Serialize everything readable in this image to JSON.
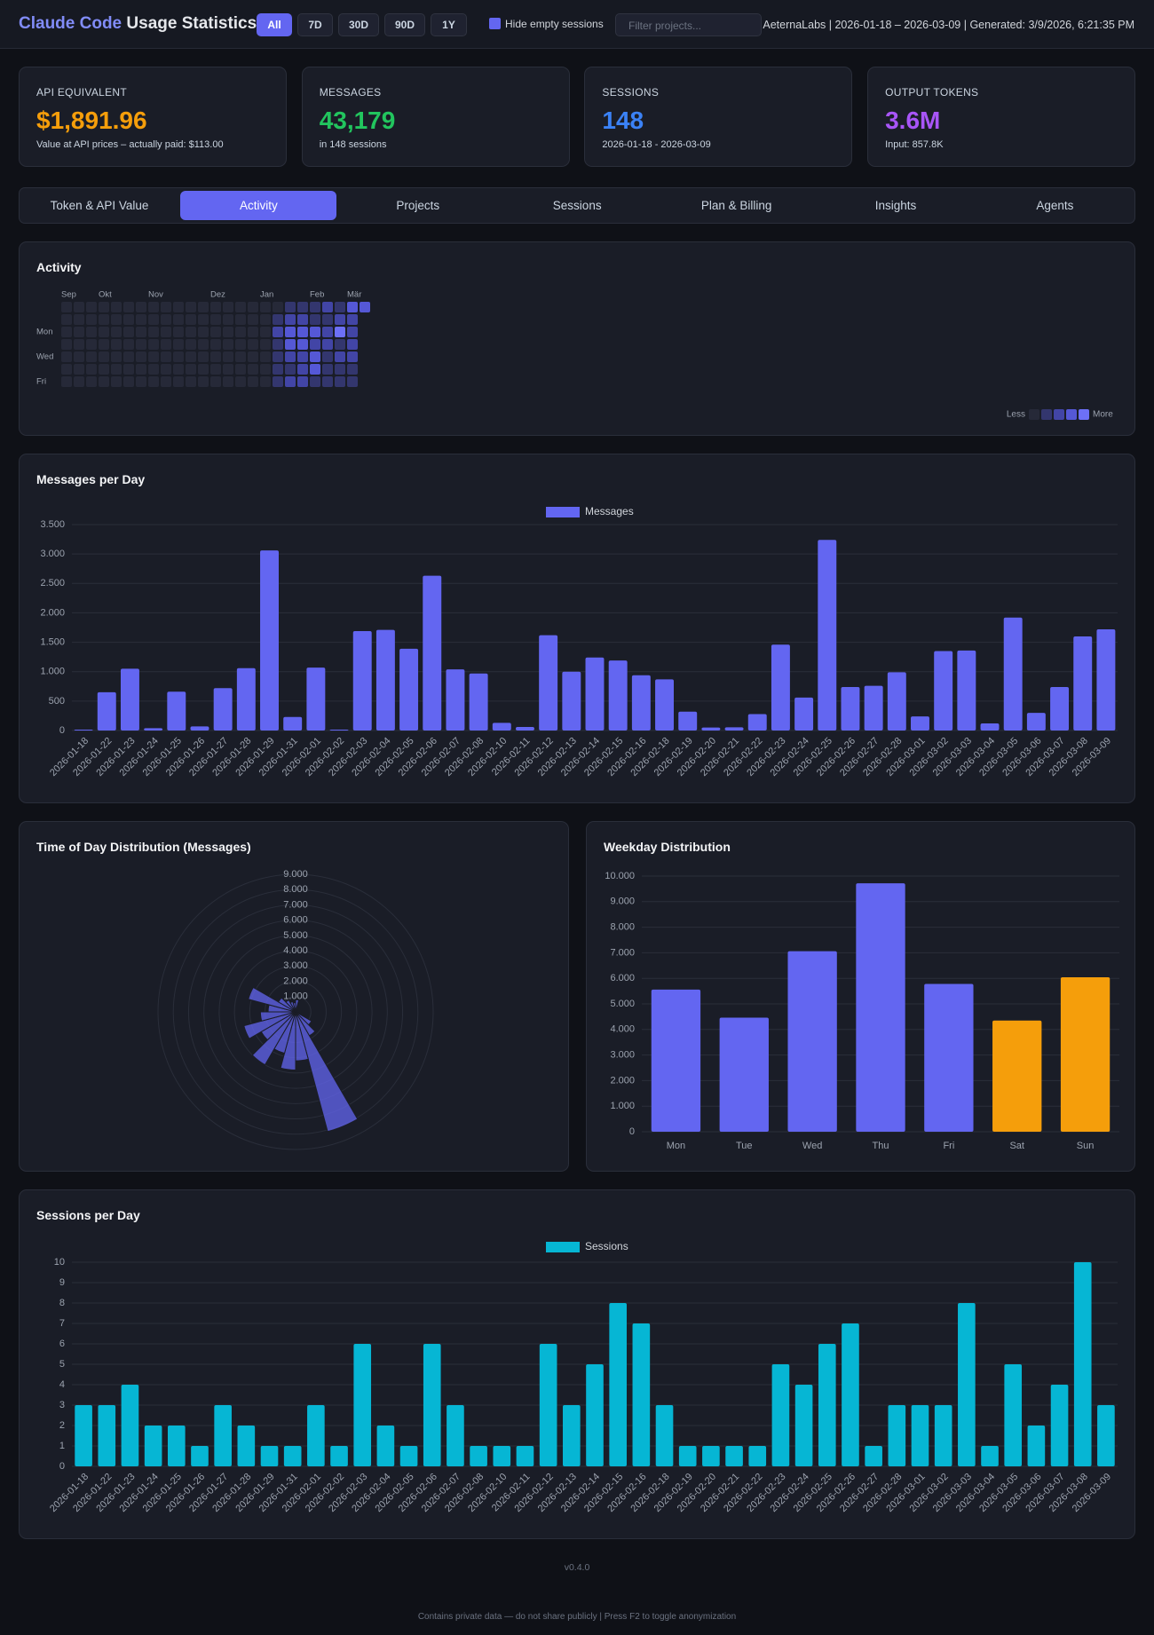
{
  "header": {
    "title_accent": "Claude Code",
    "title": "Usage Statistics",
    "ranges": [
      "All",
      "7D",
      "30D",
      "90D",
      "1Y"
    ],
    "checkbox_label": "Hide empty sessions",
    "filter_placeholder": "Filter projects...",
    "meta": "AeternaLabs | 2026-01-18 – 2026-03-09 | Generated: 3/9/2026, 6:21:35 PM"
  },
  "stats": [
    {
      "label": "API EQUIVALENT",
      "value": "$1,891.96",
      "sub": "Value at API prices – actually paid: $113.00",
      "color": "#f59e0b"
    },
    {
      "label": "MESSAGES",
      "value": "43,179",
      "sub": "in 148 sessions",
      "color": "#22c55e"
    },
    {
      "label": "SESSIONS",
      "value": "148",
      "sub": "2026-01-18 - 2026-03-09",
      "color": "#3b82f6"
    },
    {
      "label": "OUTPUT TOKENS",
      "value": "3.6M",
      "sub": "Input: 857.8K",
      "color": "#a855f7"
    }
  ],
  "tabs": [
    "Token & API Value",
    "Activity",
    "Projects",
    "Sessions",
    "Plan & Billing",
    "Insights",
    "Agents"
  ],
  "activity": {
    "title": "Activity",
    "months": [
      "Sep",
      "Okt",
      "Nov",
      "Dez",
      "Jan",
      "Feb",
      "Mär"
    ],
    "days": [
      "Mon",
      "Wed",
      "Fri"
    ],
    "legend_less": "Less",
    "legend_more": "More",
    "colors": [
      "#262938",
      "#33366e",
      "#4245a6",
      "#5558d6",
      "#6d70f7"
    ],
    "levels": [
      [
        0,
        0,
        0,
        0,
        0,
        0,
        0
      ],
      [
        0,
        0,
        0,
        0,
        0,
        0,
        0
      ],
      [
        0,
        0,
        0,
        0,
        0,
        0,
        0
      ],
      [
        0,
        0,
        0,
        0,
        0,
        0,
        0
      ],
      [
        0,
        0,
        0,
        0,
        0,
        0,
        0
      ],
      [
        0,
        0,
        0,
        0,
        0,
        0,
        0
      ],
      [
        0,
        0,
        0,
        0,
        0,
        0,
        0
      ],
      [
        0,
        0,
        0,
        0,
        0,
        0,
        0
      ],
      [
        0,
        0,
        0,
        0,
        0,
        0,
        0
      ],
      [
        0,
        0,
        0,
        0,
        0,
        0,
        0
      ],
      [
        0,
        0,
        0,
        0,
        0,
        0,
        0
      ],
      [
        0,
        0,
        0,
        0,
        0,
        0,
        0
      ],
      [
        0,
        0,
        0,
        0,
        0,
        0,
        0
      ],
      [
        0,
        0,
        0,
        0,
        0,
        0,
        0
      ],
      [
        0,
        0,
        0,
        0,
        0,
        0,
        0
      ],
      [
        0,
        0,
        0,
        0,
        0,
        0,
        0
      ],
      [
        0,
        0,
        0,
        0,
        0,
        0,
        0
      ],
      [
        0,
        1,
        2,
        1,
        1,
        1,
        1
      ],
      [
        1,
        2,
        3,
        3,
        2,
        1,
        2
      ],
      [
        1,
        2,
        3,
        3,
        2,
        2,
        2
      ],
      [
        1,
        1,
        3,
        2,
        3,
        3,
        1
      ],
      [
        2,
        1,
        2,
        2,
        1,
        1,
        1
      ],
      [
        1,
        2,
        4,
        1,
        2,
        1,
        1
      ],
      [
        3,
        2,
        2,
        2,
        2,
        1,
        1
      ],
      [
        3,
        null,
        null,
        null,
        null,
        null,
        null
      ]
    ]
  },
  "chart_data": [
    {
      "type": "bar",
      "title": "Messages per Day",
      "categories": [
        "2026-01-18",
        "2026-01-22",
        "2026-01-23",
        "2026-01-24",
        "2026-01-25",
        "2026-01-26",
        "2026-01-27",
        "2026-01-28",
        "2026-01-29",
        "2026-01-31",
        "2026-02-01",
        "2026-02-02",
        "2026-02-03",
        "2026-02-04",
        "2026-02-05",
        "2026-02-06",
        "2026-02-07",
        "2026-02-08",
        "2026-02-10",
        "2026-02-11",
        "2026-02-12",
        "2026-02-13",
        "2026-02-14",
        "2026-02-15",
        "2026-02-16",
        "2026-02-18",
        "2026-02-19",
        "2026-02-20",
        "2026-02-21",
        "2026-02-22",
        "2026-02-23",
        "2026-02-24",
        "2026-02-25",
        "2026-02-26",
        "2026-02-27",
        "2026-02-28",
        "2026-03-01",
        "2026-03-02",
        "2026-03-03",
        "2026-03-04",
        "2026-03-05",
        "2026-03-06",
        "2026-03-07",
        "2026-03-08",
        "2026-03-09"
      ],
      "series": [
        {
          "name": "Messages",
          "color": "#6366f1",
          "values": [
            15,
            650,
            1050,
            40,
            660,
            70,
            720,
            1060,
            3060,
            230,
            1070,
            15,
            1690,
            1710,
            1390,
            2630,
            1040,
            970,
            130,
            60,
            1620,
            1000,
            1240,
            1190,
            940,
            870,
            320,
            50,
            55,
            280,
            1460,
            560,
            3240,
            740,
            760,
            990,
            240,
            1350,
            1360,
            120,
            1920,
            300,
            740,
            1600,
            1720
          ]
        }
      ],
      "ylim": [
        0,
        3500
      ],
      "yticks": [
        0,
        500,
        {
          "value": 1000,
          "label": "1.000"
        },
        {
          "value": 1500,
          "label": "1.500"
        },
        {
          "value": 2000,
          "label": "2.000"
        },
        {
          "value": 2500,
          "label": "2.500"
        },
        {
          "value": 3000,
          "label": "3.000"
        },
        {
          "value": 3500,
          "label": "3.500"
        }
      ],
      "grid": true
    },
    {
      "type": "polarArea",
      "title": "Time of Day Distribution (Messages)",
      "color": "#6366f1",
      "values": [
        800,
        300,
        150,
        80,
        40,
        30,
        60,
        200,
        1200,
        1800,
        8100,
        3200,
        3800,
        2800,
        4000,
        2600,
        3500,
        2300,
        1800,
        3200,
        1300,
        900,
        700,
        600
      ],
      "rlim": [
        0,
        9000
      ],
      "rticks": [
        {
          "value": 1000,
          "label": "1.000"
        },
        {
          "value": 2000,
          "label": "2.000"
        },
        {
          "value": 3000,
          "label": "3.000"
        },
        {
          "value": 4000,
          "label": "4.000"
        },
        {
          "value": 5000,
          "label": "5.000"
        },
        {
          "value": 6000,
          "label": "6.000"
        },
        {
          "value": 7000,
          "label": "7.000"
        },
        {
          "value": 8000,
          "label": "8.000"
        },
        {
          "value": 9000,
          "label": "9.000"
        }
      ],
      "grid": true
    },
    {
      "type": "bar",
      "title": "Weekday Distribution",
      "categories": [
        "Mon",
        "Tue",
        "Wed",
        "Thu",
        "Fri",
        "Sat",
        "Sun"
      ],
      "values": [
        5560,
        4460,
        7060,
        9720,
        5780,
        4350,
        6040
      ],
      "colors": [
        "#6366f1",
        "#6366f1",
        "#6366f1",
        "#6366f1",
        "#6366f1",
        "#f59e0b",
        "#f59e0b"
      ],
      "ylim": [
        0,
        10000
      ],
      "yticks": [
        0,
        {
          "value": 1000,
          "label": "1.000"
        },
        {
          "value": 2000,
          "label": "2.000"
        },
        {
          "value": 3000,
          "label": "3.000"
        },
        {
          "value": 4000,
          "label": "4.000"
        },
        {
          "value": 5000,
          "label": "5.000"
        },
        {
          "value": 6000,
          "label": "6.000"
        },
        {
          "value": 7000,
          "label": "7.000"
        },
        {
          "value": 8000,
          "label": "8.000"
        },
        {
          "value": 9000,
          "label": "9.000"
        },
        {
          "value": 10000,
          "label": "10.000"
        }
      ],
      "grid": true
    },
    {
      "type": "bar",
      "title": "Sessions per Day",
      "categories": [
        "2026-01-18",
        "2026-01-22",
        "2026-01-23",
        "2026-01-24",
        "2026-01-25",
        "2026-01-26",
        "2026-01-27",
        "2026-01-28",
        "2026-01-29",
        "2026-01-31",
        "2026-02-01",
        "2026-02-02",
        "2026-02-03",
        "2026-02-04",
        "2026-02-05",
        "2026-02-06",
        "2026-02-07",
        "2026-02-08",
        "2026-02-10",
        "2026-02-11",
        "2026-02-12",
        "2026-02-13",
        "2026-02-14",
        "2026-02-15",
        "2026-02-16",
        "2026-02-18",
        "2026-02-19",
        "2026-02-20",
        "2026-02-21",
        "2026-02-22",
        "2026-02-23",
        "2026-02-24",
        "2026-02-25",
        "2026-02-26",
        "2026-02-27",
        "2026-02-28",
        "2026-03-01",
        "2026-03-02",
        "2026-03-03",
        "2026-03-04",
        "2026-03-05",
        "2026-03-06",
        "2026-03-07",
        "2026-03-08",
        "2026-03-09"
      ],
      "series": [
        {
          "name": "Sessions",
          "color": "#06b6d4",
          "values": [
            3,
            3,
            4,
            2,
            2,
            1,
            3,
            2,
            1,
            1,
            3,
            1,
            6,
            2,
            1,
            6,
            3,
            1,
            1,
            1,
            6,
            3,
            5,
            8,
            7,
            3,
            1,
            1,
            1,
            1,
            5,
            4,
            6,
            7,
            1,
            3,
            3,
            3,
            8,
            1,
            5,
            2,
            4,
            10,
            3
          ]
        }
      ],
      "ylim": [
        0,
        10
      ],
      "yticks": [
        0,
        1,
        2,
        3,
        4,
        5,
        6,
        7,
        8,
        9,
        10
      ],
      "grid": true
    }
  ],
  "footer": {
    "version": "v0.4.0",
    "note": "Contains private data — do not share publicly | Press F2 to toggle anonymization"
  }
}
